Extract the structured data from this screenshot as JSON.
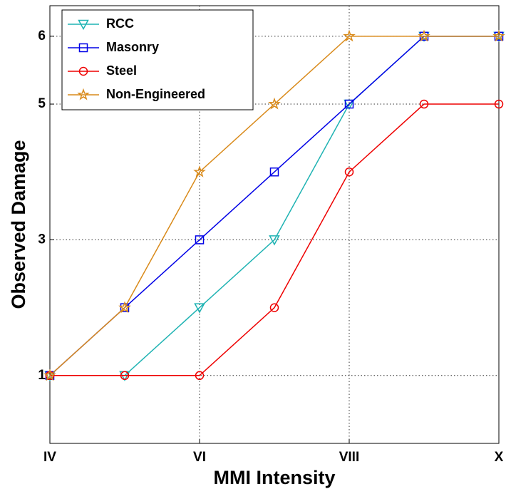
{
  "chart_data": {
    "type": "line",
    "x_label": "MMI Intensity",
    "y_label": "Observed Damage",
    "x": [
      4,
      5,
      6,
      7,
      8,
      9,
      10
    ],
    "series": [
      {
        "name": "RCC",
        "color": "#1fb3b3",
        "marker": "triangle-down",
        "values": [
          1,
          1,
          2,
          3,
          5,
          6,
          6
        ]
      },
      {
        "name": "Masonry",
        "color": "#0000e6",
        "marker": "square",
        "values": [
          1,
          2,
          3,
          4,
          5,
          6,
          6
        ]
      },
      {
        "name": "Steel",
        "color": "#ee0000",
        "marker": "circle",
        "values": [
          1,
          1,
          1,
          2,
          4,
          5,
          5
        ]
      },
      {
        "name": "Non-Engineered",
        "color": "#d98a1a",
        "marker": "star",
        "values": [
          1,
          2,
          4,
          5,
          6,
          6,
          6
        ]
      }
    ],
    "xlim": [
      4,
      10
    ],
    "xticks": [
      {
        "value": 4,
        "label": "IV"
      },
      {
        "value": 6,
        "label": "VI"
      },
      {
        "value": 8,
        "label": "VIII"
      },
      {
        "value": 10,
        "label": "X"
      }
    ],
    "ylim": [
      0,
      6.45
    ],
    "yticks": [
      1,
      3,
      5,
      6
    ],
    "grid": true,
    "legend": "upper-left"
  }
}
